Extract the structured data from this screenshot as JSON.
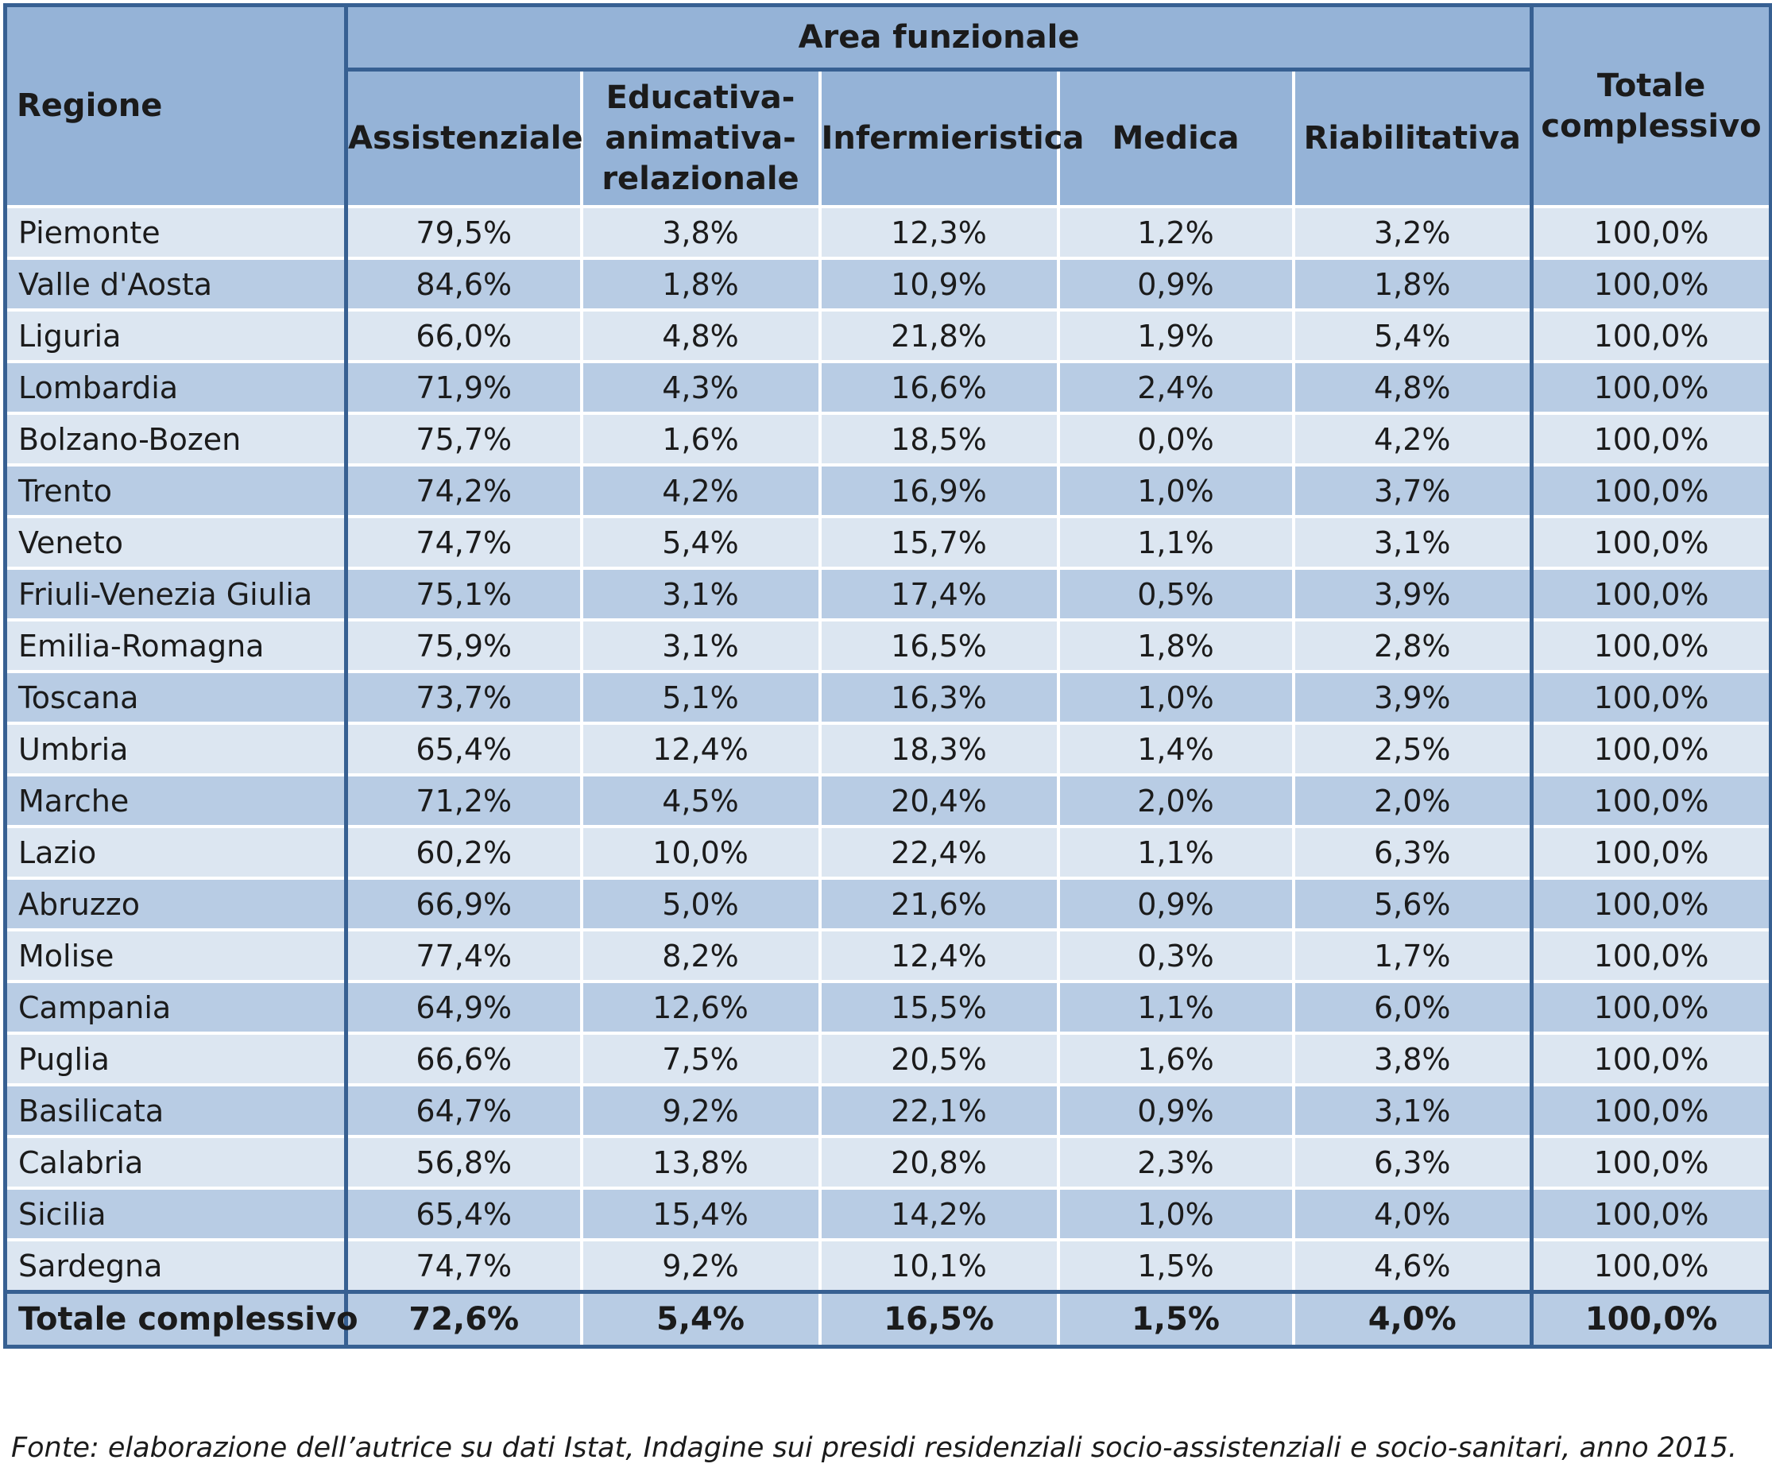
{
  "header": {
    "regione": "Regione",
    "area_funzionale": "Area funzionale",
    "columns": [
      "Assistenziale",
      "Educativa-\nanimativa-\nrelazionale",
      "Infermieristica",
      "Medica",
      "Riabilitativa"
    ],
    "totale": "Totale complessivo"
  },
  "rows": [
    [
      "Piemonte",
      "79,5%",
      "3,8%",
      "12,3%",
      "1,2%",
      "3,2%",
      "100,0%"
    ],
    [
      "Valle d'Aosta",
      "84,6%",
      "1,8%",
      "10,9%",
      "0,9%",
      "1,8%",
      "100,0%"
    ],
    [
      "Liguria",
      "66,0%",
      "4,8%",
      "21,8%",
      "1,9%",
      "5,4%",
      "100,0%"
    ],
    [
      "Lombardia",
      "71,9%",
      "4,3%",
      "16,6%",
      "2,4%",
      "4,8%",
      "100,0%"
    ],
    [
      "Bolzano-Bozen",
      "75,7%",
      "1,6%",
      "18,5%",
      "0,0%",
      "4,2%",
      "100,0%"
    ],
    [
      "Trento",
      "74,2%",
      "4,2%",
      "16,9%",
      "1,0%",
      "3,7%",
      "100,0%"
    ],
    [
      "Veneto",
      "74,7%",
      "5,4%",
      "15,7%",
      "1,1%",
      "3,1%",
      "100,0%"
    ],
    [
      "Friuli-Venezia Giulia",
      "75,1%",
      "3,1%",
      "17,4%",
      "0,5%",
      "3,9%",
      "100,0%"
    ],
    [
      "Emilia-Romagna",
      "75,9%",
      "3,1%",
      "16,5%",
      "1,8%",
      "2,8%",
      "100,0%"
    ],
    [
      "Toscana",
      "73,7%",
      "5,1%",
      "16,3%",
      "1,0%",
      "3,9%",
      "100,0%"
    ],
    [
      "Umbria",
      "65,4%",
      "12,4%",
      "18,3%",
      "1,4%",
      "2,5%",
      "100,0%"
    ],
    [
      "Marche",
      "71,2%",
      "4,5%",
      "20,4%",
      "2,0%",
      "2,0%",
      "100,0%"
    ],
    [
      "Lazio",
      "60,2%",
      "10,0%",
      "22,4%",
      "1,1%",
      "6,3%",
      "100,0%"
    ],
    [
      "Abruzzo",
      "66,9%",
      "5,0%",
      "21,6%",
      "0,9%",
      "5,6%",
      "100,0%"
    ],
    [
      "Molise",
      "77,4%",
      "8,2%",
      "12,4%",
      "0,3%",
      "1,7%",
      "100,0%"
    ],
    [
      "Campania",
      "64,9%",
      "12,6%",
      "15,5%",
      "1,1%",
      "6,0%",
      "100,0%"
    ],
    [
      "Puglia",
      "66,6%",
      "7,5%",
      "20,5%",
      "1,6%",
      "3,8%",
      "100,0%"
    ],
    [
      "Basilicata",
      "64,7%",
      "9,2%",
      "22,1%",
      "0,9%",
      "3,1%",
      "100,0%"
    ],
    [
      "Calabria",
      "56,8%",
      "13,8%",
      "20,8%",
      "2,3%",
      "6,3%",
      "100,0%"
    ],
    [
      "Sicilia",
      "65,4%",
      "15,4%",
      "14,2%",
      "1,0%",
      "4,0%",
      "100,0%"
    ],
    [
      "Sardegna",
      "74,7%",
      "9,2%",
      "10,1%",
      "1,5%",
      "4,6%",
      "100,0%"
    ]
  ],
  "total_row": [
    "Totale complessivo",
    "72,6%",
    "5,4%",
    "16,5%",
    "1,5%",
    "4,0%",
    "100,0%"
  ],
  "source": "Fonte: elaborazione dell’autrice su dati Istat, Indagine sui presidi residenziali socio-assistenziali e socio-sanitari, anno 2015.",
  "colors": {
    "header_bg": "#95b3d7",
    "row_light": "#dce6f1",
    "row_dark": "#b8cce4",
    "frame": "#376092"
  }
}
